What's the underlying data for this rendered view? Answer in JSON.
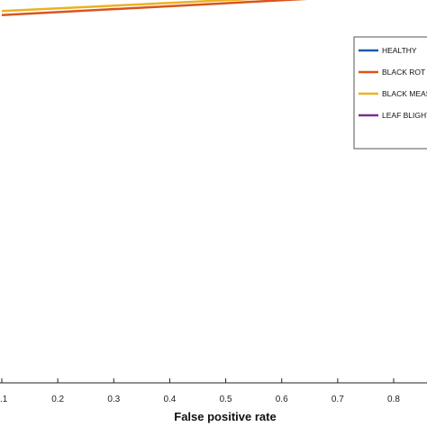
{
  "chart_data": {
    "type": "line",
    "title": "",
    "xlabel": "False positive rate",
    "ylabel": "",
    "xlim": [
      0.1,
      0.9
    ],
    "ylim": [
      0,
      1
    ],
    "x_ticks": [
      0.1,
      0.2,
      0.3,
      0.4,
      0.5,
      0.6,
      0.7,
      0.8
    ],
    "x_tick_labels": [
      ".1",
      "0.2",
      "0.3",
      "0.4",
      "0.5",
      "0.6",
      "0.7",
      "0.8"
    ],
    "grid": false,
    "legend_position": "top-right",
    "series": [
      {
        "name": "HEALTHY",
        "color": "#1f5aa6",
        "x": [
          0.1,
          0.9
        ],
        "y": [
          0.98,
          0.995
        ]
      },
      {
        "name": "BLACK ROT",
        "color": "#d9541c",
        "x": [
          0.1,
          0.9
        ],
        "y": [
          0.93,
          0.99
        ]
      },
      {
        "name": "BLACK MEASLES",
        "color": "#edb120",
        "x": [
          0.1,
          0.9
        ],
        "y": [
          0.94,
          0.995
        ]
      },
      {
        "name": "LEAF BLIGHT",
        "color": "#7e2f8e",
        "x": [
          0.1,
          0.9
        ],
        "y": [
          0.985,
          0.998
        ]
      }
    ]
  }
}
